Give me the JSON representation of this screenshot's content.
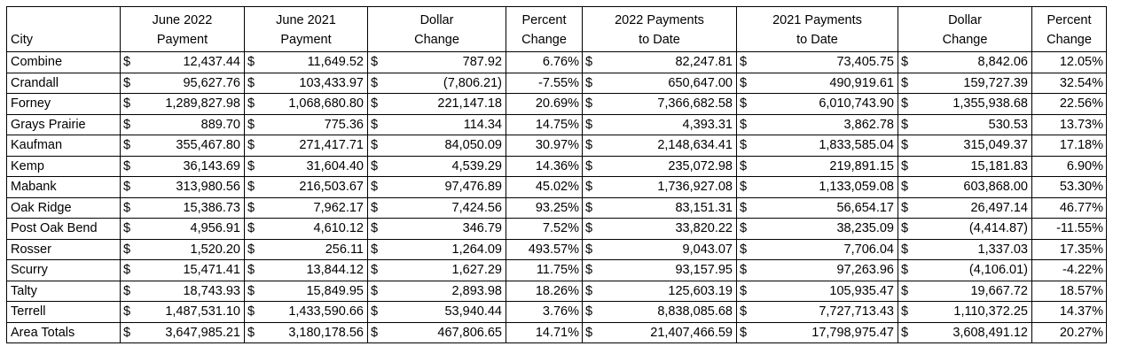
{
  "columns": {
    "city": [
      "",
      "City"
    ],
    "june2022": [
      "June 2022",
      "Payment"
    ],
    "june2021": [
      "June 2021",
      "Payment"
    ],
    "dollar1": [
      "Dollar",
      "Change"
    ],
    "pct1": [
      "Percent",
      "Change"
    ],
    "ytd2022": [
      "2022 Payments",
      "to Date"
    ],
    "ytd2021": [
      "2021 Payments",
      "to Date"
    ],
    "dollar2": [
      "Dollar",
      "Change"
    ],
    "pct2": [
      "Percent",
      "Change"
    ]
  },
  "currency_symbol": "$",
  "rows": [
    {
      "city": "Combine",
      "june2022": "12,437.44",
      "june2021": "11,649.52",
      "dollar1": "787.92",
      "pct1": "6.76%",
      "ytd2022": "82,247.81",
      "ytd2021": "73,405.75",
      "dollar2": "8,842.06",
      "pct2": "12.05%"
    },
    {
      "city": "Crandall",
      "june2022": "95,627.76",
      "june2021": "103,433.97",
      "dollar1": "(7,806.21)",
      "pct1": "-7.55%",
      "ytd2022": "650,647.00",
      "ytd2021": "490,919.61",
      "dollar2": "159,727.39",
      "pct2": "32.54%"
    },
    {
      "city": "Forney",
      "june2022": "1,289,827.98",
      "june2021": "1,068,680.80",
      "dollar1": "221,147.18",
      "pct1": "20.69%",
      "ytd2022": "7,366,682.58",
      "ytd2021": "6,010,743.90",
      "dollar2": "1,355,938.68",
      "pct2": "22.56%"
    },
    {
      "city": "Grays Prairie",
      "june2022": "889.70",
      "june2021": "775.36",
      "dollar1": "114.34",
      "pct1": "14.75%",
      "ytd2022": "4,393.31",
      "ytd2021": "3,862.78",
      "dollar2": "530.53",
      "pct2": "13.73%"
    },
    {
      "city": "Kaufman",
      "june2022": "355,467.80",
      "june2021": "271,417.71",
      "dollar1": "84,050.09",
      "pct1": "30.97%",
      "ytd2022": "2,148,634.41",
      "ytd2021": "1,833,585.04",
      "dollar2": "315,049.37",
      "pct2": "17.18%"
    },
    {
      "city": "Kemp",
      "june2022": "36,143.69",
      "june2021": "31,604.40",
      "dollar1": "4,539.29",
      "pct1": "14.36%",
      "ytd2022": "235,072.98",
      "ytd2021": "219,891.15",
      "dollar2": "15,181.83",
      "pct2": "6.90%"
    },
    {
      "city": "Mabank",
      "june2022": "313,980.56",
      "june2021": "216,503.67",
      "dollar1": "97,476.89",
      "pct1": "45.02%",
      "ytd2022": "1,736,927.08",
      "ytd2021": "1,133,059.08",
      "dollar2": "603,868.00",
      "pct2": "53.30%"
    },
    {
      "city": "Oak Ridge",
      "june2022": "15,386.73",
      "june2021": "7,962.17",
      "dollar1": "7,424.56",
      "pct1": "93.25%",
      "ytd2022": "83,151.31",
      "ytd2021": "56,654.17",
      "dollar2": "26,497.14",
      "pct2": "46.77%"
    },
    {
      "city": "Post Oak Bend",
      "june2022": "4,956.91",
      "june2021": "4,610.12",
      "dollar1": "346.79",
      "pct1": "7.52%",
      "ytd2022": "33,820.22",
      "ytd2021": "38,235.09",
      "dollar2": "(4,414.87)",
      "pct2": "-11.55%"
    },
    {
      "city": "Rosser",
      "june2022": "1,520.20",
      "june2021": "256.11",
      "dollar1": "1,264.09",
      "pct1": "493.57%",
      "ytd2022": "9,043.07",
      "ytd2021": "7,706.04",
      "dollar2": "1,337.03",
      "pct2": "17.35%"
    },
    {
      "city": "Scurry",
      "june2022": "15,471.41",
      "june2021": "13,844.12",
      "dollar1": "1,627.29",
      "pct1": "11.75%",
      "ytd2022": "93,157.95",
      "ytd2021": "97,263.96",
      "dollar2": "(4,106.01)",
      "pct2": "-4.22%"
    },
    {
      "city": "Talty",
      "june2022": "18,743.93",
      "june2021": "15,849.95",
      "dollar1": "2,893.98",
      "pct1": "18.26%",
      "ytd2022": "125,603.19",
      "ytd2021": "105,935.47",
      "dollar2": "19,667.72",
      "pct2": "18.57%"
    },
    {
      "city": "Terrell",
      "june2022": "1,487,531.10",
      "june2021": "1,433,590.66",
      "dollar1": "53,940.44",
      "pct1": "3.76%",
      "ytd2022": "8,838,085.68",
      "ytd2021": "7,727,713.43",
      "dollar2": "1,110,372.25",
      "pct2": "14.37%"
    },
    {
      "city": "Area Totals",
      "june2022": "3,647,985.21",
      "june2021": "3,180,178.56",
      "dollar1": "467,806.65",
      "pct1": "14.71%",
      "ytd2022": "21,407,466.59",
      "ytd2021": "17,798,975.47",
      "dollar2": "3,608,491.12",
      "pct2": "20.27%"
    }
  ]
}
